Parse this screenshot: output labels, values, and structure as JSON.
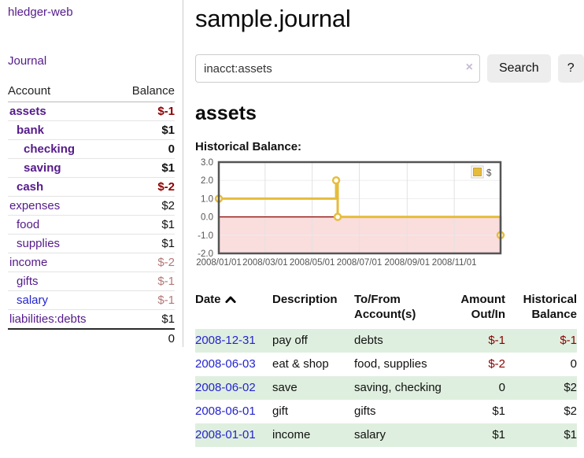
{
  "colors": {
    "link_purple": "#551a8b",
    "link_blue": "#2424d0",
    "negative_red": "#8b0000",
    "muted_negative": "#b47878",
    "row_stripe_green": "#dfefdf",
    "chart_gold": "#e6bc3c"
  },
  "sidebar": {
    "brand": "hledger-web",
    "journal_label": "Journal",
    "accounts_table": {
      "headers": {
        "account": "Account",
        "balance": "Balance"
      },
      "rows": [
        {
          "label": "assets",
          "indent": 0,
          "bold": true,
          "balance": "$-1",
          "balance_class": "neg"
        },
        {
          "label": "bank",
          "indent": 1,
          "bold": true,
          "balance": "$1",
          "balance_class": ""
        },
        {
          "label": "checking",
          "indent": 2,
          "bold": true,
          "balance": "0",
          "balance_class": ""
        },
        {
          "label": "saving",
          "indent": 2,
          "bold": true,
          "balance": "$1",
          "balance_class": ""
        },
        {
          "label": "cash",
          "indent": 1,
          "bold": true,
          "balance": "$-2",
          "balance_class": "neg"
        },
        {
          "label": "expenses",
          "indent": 0,
          "bold": false,
          "balance": "$2",
          "balance_class": ""
        },
        {
          "label": "food",
          "indent": 1,
          "bold": false,
          "balance": "$1",
          "balance_class": ""
        },
        {
          "label": "supplies",
          "indent": 1,
          "bold": false,
          "balance": "$1",
          "balance_class": ""
        },
        {
          "label": "income",
          "indent": 0,
          "bold": false,
          "balance": "$-2",
          "balance_class": "dim-neg"
        },
        {
          "label": "gifts",
          "indent": 1,
          "bold": false,
          "balance": "$-1",
          "balance_class": "dim-neg"
        },
        {
          "label": "salary",
          "indent": 1,
          "bold": false,
          "name_color": "blue",
          "balance": "$-1",
          "balance_class": "dim-neg"
        },
        {
          "label": "liabilities:debts",
          "indent": 0,
          "bold": false,
          "balance": "$1",
          "balance_class": ""
        }
      ],
      "total": "0"
    }
  },
  "main": {
    "title": "sample.journal",
    "search": {
      "value": "inacct:assets",
      "clear_icon": "×",
      "button_label": "Search",
      "help_label": "?"
    },
    "account_heading": "assets",
    "chart_label": "Historical Balance:",
    "register_table": {
      "headers": {
        "date": "Date",
        "description": "Description",
        "accounts": "To/From Account(s)",
        "amount": "Amount Out/In",
        "balance": "Historical Balance"
      },
      "rows": [
        {
          "date": "2008-12-31",
          "description": "pay off",
          "accounts": "debts",
          "amount": "$-1",
          "amount_class": "neg",
          "balance": "$-1",
          "balance_class": "neg"
        },
        {
          "date": "2008-06-03",
          "description": "eat & shop",
          "accounts": "food, supplies",
          "amount": "$-2",
          "amount_class": "neg",
          "balance": "0",
          "balance_class": ""
        },
        {
          "date": "2008-06-02",
          "description": "save",
          "accounts": "saving, checking",
          "amount": "0",
          "amount_class": "",
          "balance": "$2",
          "balance_class": ""
        },
        {
          "date": "2008-06-01",
          "description": "gift",
          "accounts": "gifts",
          "amount": "$1",
          "amount_class": "",
          "balance": "$2",
          "balance_class": ""
        },
        {
          "date": "2008-01-01",
          "description": "income",
          "accounts": "salary",
          "amount": "$1",
          "amount_class": "",
          "balance": "$1",
          "balance_class": ""
        }
      ]
    }
  },
  "chart_data": {
    "type": "line",
    "step": true,
    "title": "Historical Balance",
    "x_range": [
      "2008-01-01",
      "2008-12-31"
    ],
    "ylim": [
      -2.0,
      3.0
    ],
    "yticks": [
      3.0,
      2.0,
      1.0,
      0.0,
      -1.0,
      -2.0
    ],
    "xticks": [
      "2008/01/01",
      "2008/03/01",
      "2008/05/01",
      "2008/07/01",
      "2008/09/01",
      "2008/11/01"
    ],
    "legend_position": "top-right",
    "grid": true,
    "negative_fill": "#fadddd",
    "zero_line_color": "#8b0000",
    "series": [
      {
        "name": "$",
        "color": "#e6bc3c",
        "points": [
          [
            "2008-01-01",
            1
          ],
          [
            "2008-06-01",
            2
          ],
          [
            "2008-06-02",
            2
          ],
          [
            "2008-06-03",
            0
          ],
          [
            "2008-12-31",
            -1
          ]
        ],
        "markers": [
          [
            "2008-01-01",
            1
          ],
          [
            "2008-06-01",
            2
          ],
          [
            "2008-06-03",
            0
          ],
          [
            "2008-12-31",
            -1
          ]
        ]
      }
    ]
  }
}
